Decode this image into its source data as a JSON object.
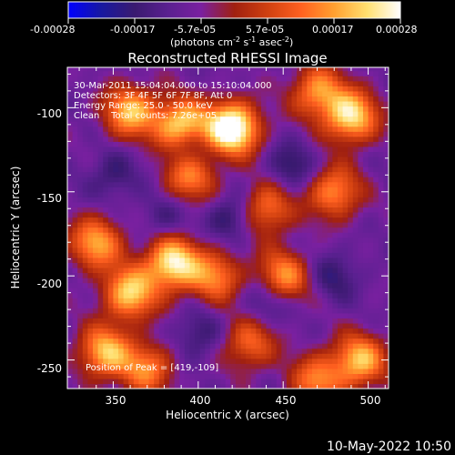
{
  "colorbar": {
    "tick_labels": [
      "-0.00028",
      "-0.00017",
      "-5.7e-05",
      "5.7e-05",
      "0.00017",
      "0.00028"
    ],
    "unit_prefix": "(photons cm",
    "unit_exp1": "-2",
    "unit_mid": " s",
    "unit_exp2": "-1",
    "unit_mid2": " asec",
    "unit_exp3": "-2",
    "unit_suffix": ")",
    "colors": [
      "#0000ff",
      "#1818a0",
      "#3a1a70",
      "#5a2090",
      "#7a20a0",
      "#a02010",
      "#d04010",
      "#ff6020",
      "#ffa030",
      "#ffe070",
      "#ffffff"
    ]
  },
  "chart_data": {
    "type": "heatmap",
    "title": "Reconstructed RHESSI Image",
    "xlabel": "Heliocentric X (arcsec)",
    "ylabel": "Heliocentric Y (arcsec)",
    "x_ticks": [
      "350",
      "400",
      "450",
      "500"
    ],
    "y_ticks": [
      "-100",
      "-150",
      "-200",
      "-250"
    ],
    "xlim": [
      323,
      512
    ],
    "ylim": [
      -267,
      -76
    ],
    "value_range": [
      -0.00028,
      0.00028
    ],
    "peak": [
      419,
      -109
    ],
    "annotations": [
      "30-Mar-2011 15:04:04.000 to 15:10:04.000",
      "Detectors: 3F 4F 5F 6F 7F 8F, Att 0",
      "Energy Range: 25.0 - 50.0 keV",
      "Clean    Total counts: 7.26e+05",
      "Position of Peak = [419,-109]"
    ],
    "bright_regions": [
      {
        "x": 420,
        "y": -112,
        "intensity": 1.0
      },
      {
        "x": 390,
        "y": -110,
        "intensity": 0.75
      },
      {
        "x": 360,
        "y": -102,
        "intensity": 0.65
      },
      {
        "x": 490,
        "y": -105,
        "intensity": 0.75
      },
      {
        "x": 470,
        "y": -90,
        "intensity": 0.55
      },
      {
        "x": 395,
        "y": -140,
        "intensity": 0.55
      },
      {
        "x": 440,
        "y": -160,
        "intensity": 0.5
      },
      {
        "x": 480,
        "y": -150,
        "intensity": 0.55
      },
      {
        "x": 385,
        "y": -192,
        "intensity": 0.8
      },
      {
        "x": 360,
        "y": -210,
        "intensity": 0.7
      },
      {
        "x": 340,
        "y": -180,
        "intensity": 0.6
      },
      {
        "x": 450,
        "y": -200,
        "intensity": 0.55
      },
      {
        "x": 410,
        "y": -200,
        "intensity": 0.5
      },
      {
        "x": 345,
        "y": -245,
        "intensity": 0.65
      },
      {
        "x": 370,
        "y": -255,
        "intensity": 0.5
      },
      {
        "x": 495,
        "y": -250,
        "intensity": 0.65
      },
      {
        "x": 470,
        "y": -262,
        "intensity": 0.5
      },
      {
        "x": 430,
        "y": -240,
        "intensity": 0.45
      }
    ],
    "dark_regions": [
      {
        "x": 395,
        "y": -125,
        "depth": 0.7
      },
      {
        "x": 420,
        "y": -165,
        "depth": 0.8
      },
      {
        "x": 455,
        "y": -135,
        "depth": 0.7
      },
      {
        "x": 440,
        "y": -215,
        "depth": 0.6
      },
      {
        "x": 400,
        "y": -235,
        "depth": 0.6
      },
      {
        "x": 350,
        "y": -140,
        "depth": 0.6
      },
      {
        "x": 480,
        "y": -200,
        "depth": 0.6
      },
      {
        "x": 380,
        "y": -165,
        "depth": 0.5
      }
    ]
  },
  "footer": {
    "date": "10-May-2022 10:50"
  }
}
